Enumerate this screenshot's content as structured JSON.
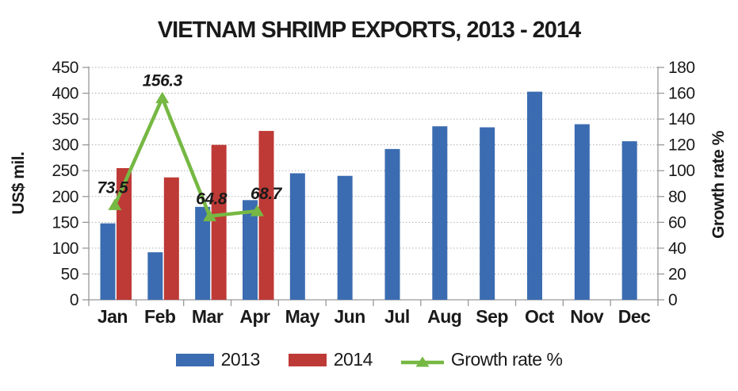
{
  "chart_data": {
    "type": "bar",
    "subtype": "grouped-bar-with-line-combo",
    "title": "VIETNAM SHRIMP EXPORTS, 2013 - 2014",
    "categories": [
      "Jan",
      "Feb",
      "Mar",
      "Apr",
      "May",
      "Jun",
      "Jul",
      "Aug",
      "Sep",
      "Oct",
      "Nov",
      "Dec"
    ],
    "series": [
      {
        "name": "2013",
        "type": "bar",
        "axis": "left",
        "color": "#3B6CB1",
        "values": [
          148,
          92,
          180,
          193,
          245,
          240,
          292,
          336,
          334,
          403,
          340,
          307
        ]
      },
      {
        "name": "2014",
        "type": "bar",
        "axis": "left",
        "color": "#BE3A36",
        "values": [
          255,
          237,
          300,
          327,
          null,
          null,
          null,
          null,
          null,
          null,
          null,
          null
        ]
      },
      {
        "name": "Growth rate %",
        "type": "line",
        "axis": "right",
        "color": "#76B843",
        "marker": "triangle",
        "values": [
          73.5,
          156.3,
          64.8,
          68.7,
          null,
          null,
          null,
          null,
          null,
          null,
          null,
          null
        ],
        "point_labels": [
          "73.5",
          "156.3",
          "64.8",
          "68.7"
        ]
      }
    ],
    "left_axis": {
      "label": "US$ mil.",
      "min": 0,
      "max": 450,
      "step": 50
    },
    "right_axis": {
      "label": "Growth rate %",
      "min": 0,
      "max": 180,
      "step": 20
    },
    "grid": true,
    "legend_position": "bottom"
  },
  "colors": {
    "axis": "#999999",
    "grid": "#ADADAD",
    "text": "#1A1A1A"
  }
}
